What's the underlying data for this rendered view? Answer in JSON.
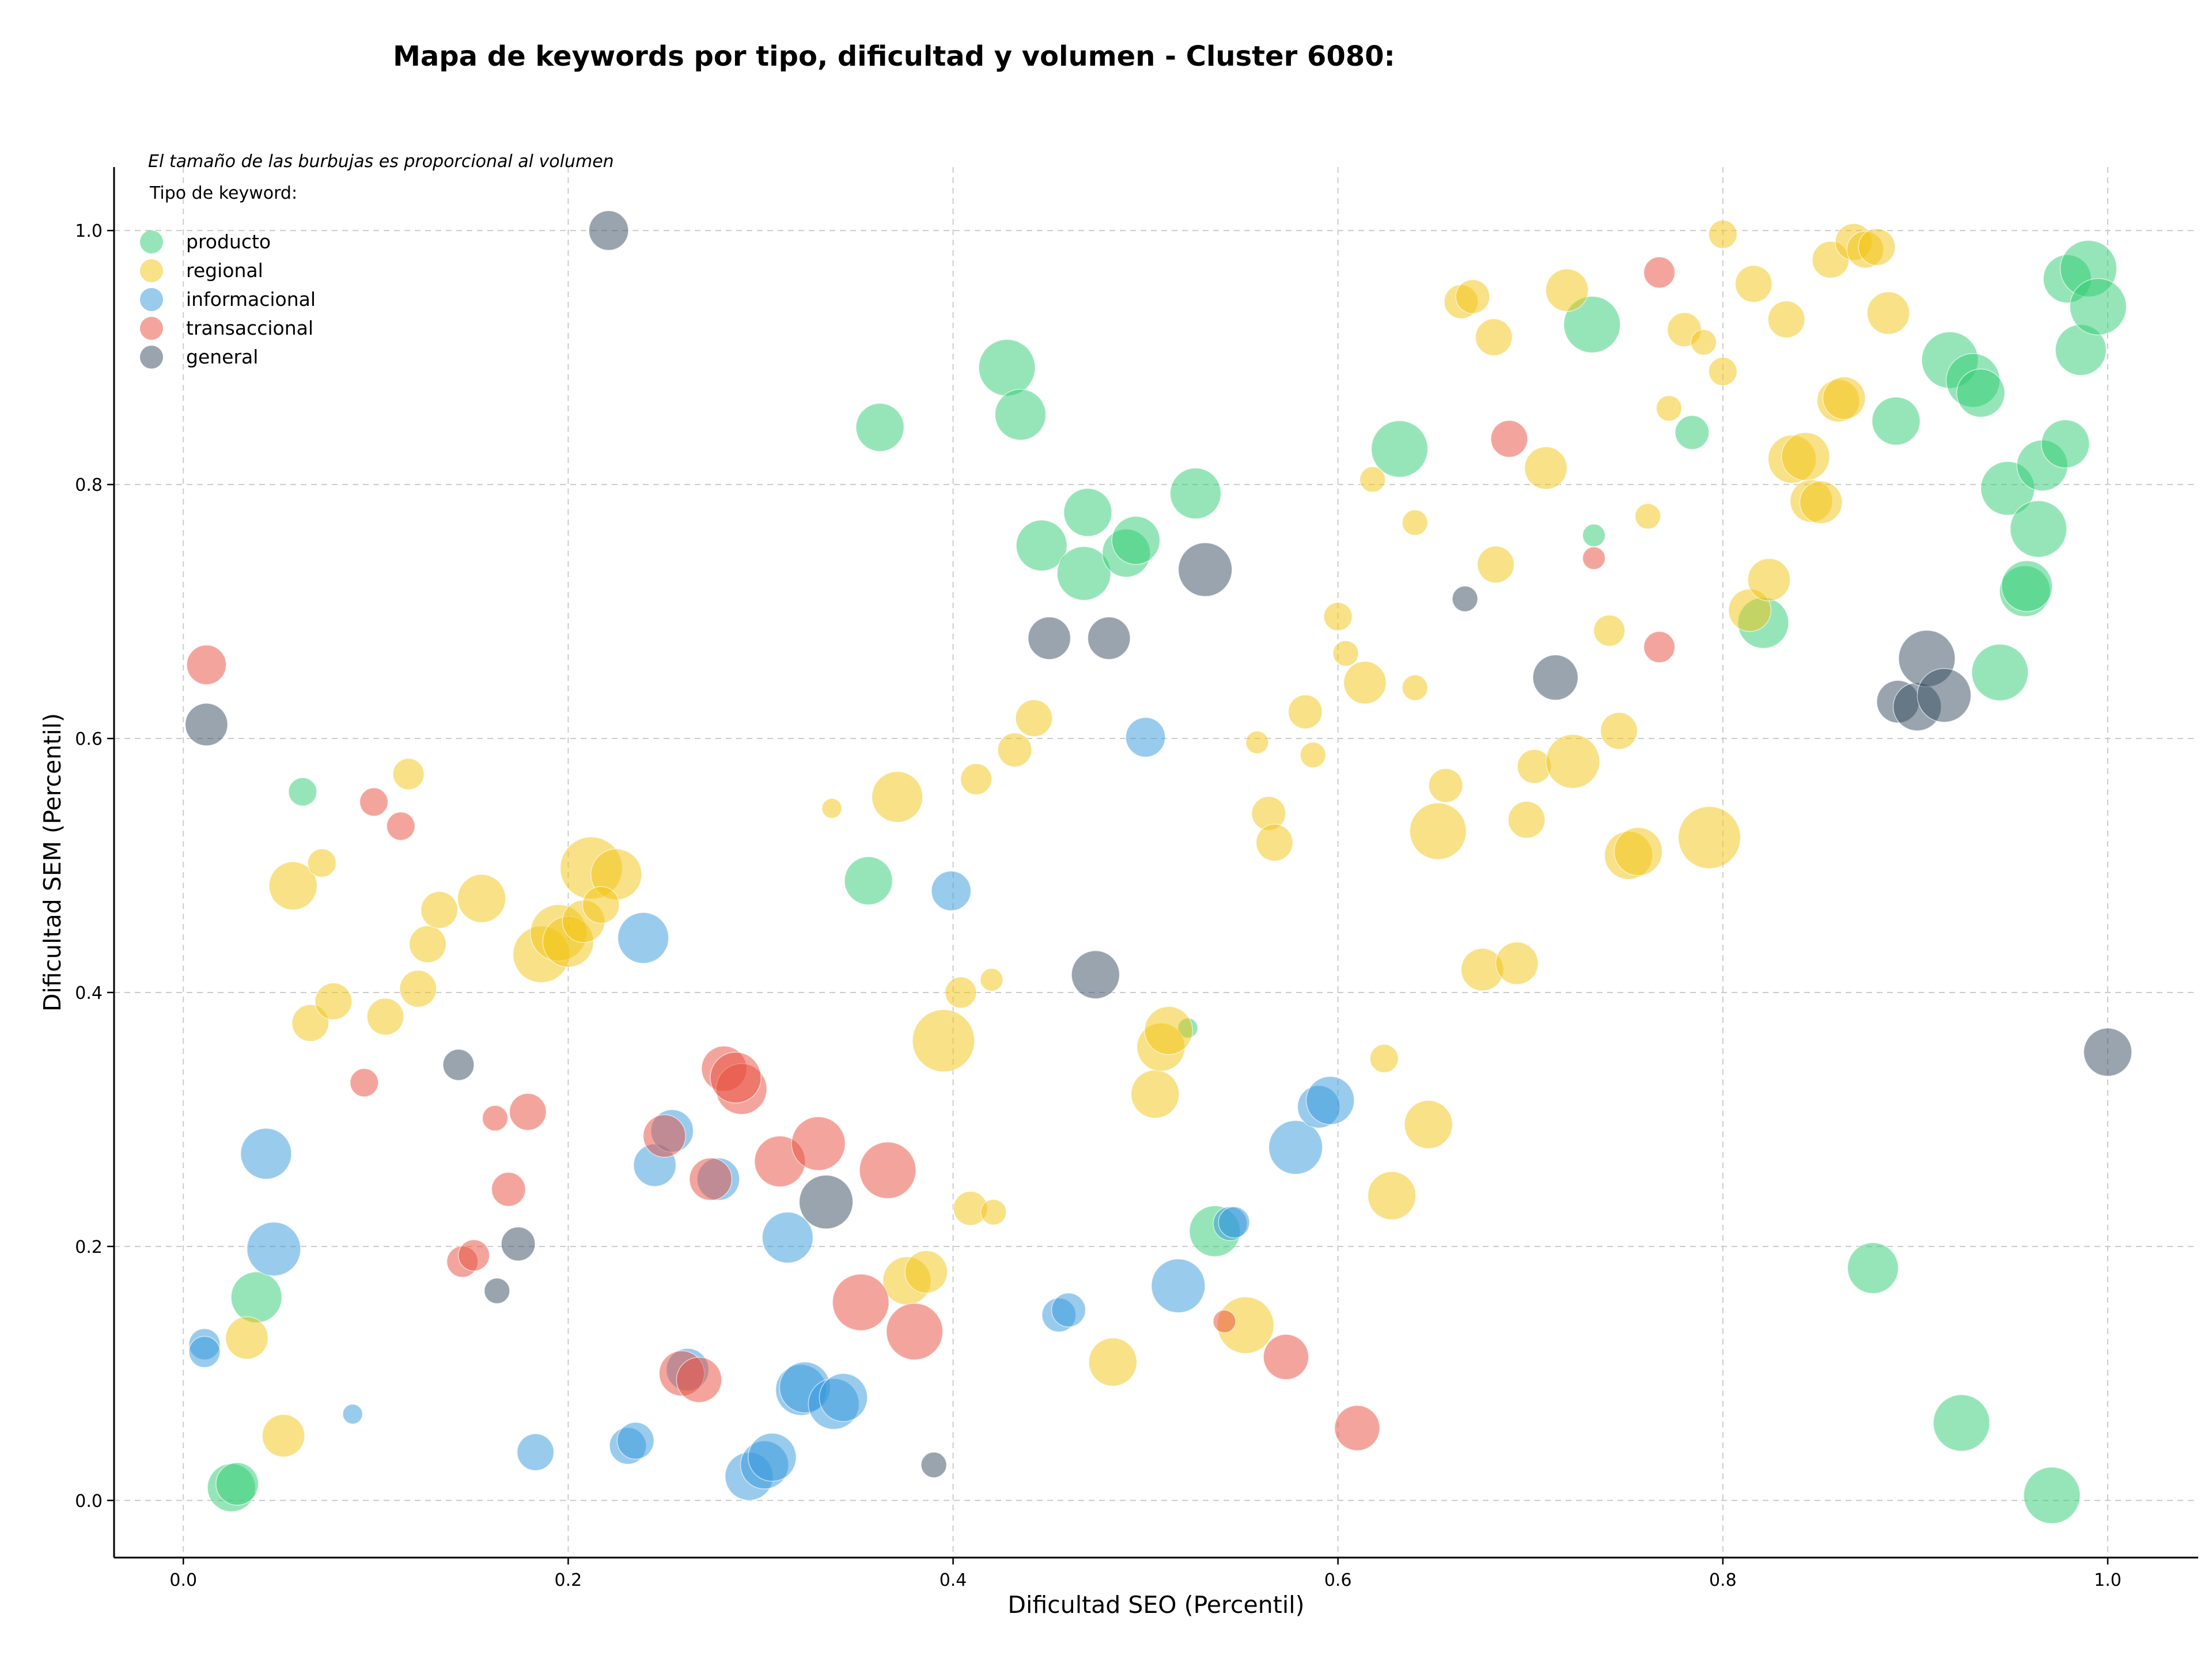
{
  "chart_data": {
    "type": "scatter",
    "title": "Mapa de keywords por tipo, dificultad y volumen - Cluster 6080:",
    "xlabel": "Dificultad SEO (Percentil)",
    "ylabel": "Dificultad SEM (Percentil)",
    "xlim": [
      -0.036,
      1.047
    ],
    "ylim": [
      -0.045,
      1.05
    ],
    "x_ticks": [
      "0.0",
      "0.2",
      "0.4",
      "0.6",
      "0.8",
      "1.0"
    ],
    "y_ticks": [
      "0.0",
      "0.2",
      "0.4",
      "0.6",
      "0.8",
      "1.0"
    ],
    "grid": true,
    "legend": {
      "placement": "top-left",
      "note": "El tamaño de las burbujas es proporcional al volumen",
      "title": "Tipo de keyword:",
      "entries": [
        "producto",
        "regional",
        "informacional",
        "transaccional",
        "general"
      ]
    },
    "size_encoding": "volumen",
    "series": [
      {
        "name": "producto",
        "color": "#2ecc71",
        "points": [
          [
            0.062,
            0.558,
            10
          ],
          [
            0.025,
            0.01,
            17
          ],
          [
            0.028,
            0.013,
            15
          ],
          [
            0.038,
            0.16,
            18
          ],
          [
            0.362,
            0.845,
            17
          ],
          [
            0.356,
            0.488,
            17
          ],
          [
            0.428,
            0.892,
            20
          ],
          [
            0.435,
            0.855,
            18
          ],
          [
            0.446,
            0.752,
            18
          ],
          [
            0.468,
            0.73,
            19
          ],
          [
            0.47,
            0.778,
            17
          ],
          [
            0.49,
            0.746,
            17
          ],
          [
            0.495,
            0.756,
            17
          ],
          [
            0.526,
            0.793,
            18
          ],
          [
            0.536,
            0.212,
            18
          ],
          [
            0.522,
            0.372,
            7
          ],
          [
            0.632,
            0.828,
            20
          ],
          [
            0.732,
            0.926,
            20
          ],
          [
            0.733,
            0.76,
            8
          ],
          [
            0.784,
            0.841,
            12
          ],
          [
            0.821,
            0.691,
            18
          ],
          [
            0.89,
            0.85,
            17
          ],
          [
            0.878,
            0.183,
            18
          ],
          [
            0.924,
            0.061,
            20
          ],
          [
            0.918,
            0.898,
            20
          ],
          [
            0.93,
            0.882,
            19
          ],
          [
            0.934,
            0.872,
            17
          ],
          [
            0.944,
            0.652,
            20
          ],
          [
            0.948,
            0.797,
            19
          ],
          [
            0.957,
            0.716,
            18
          ],
          [
            0.958,
            0.72,
            18
          ],
          [
            0.964,
            0.765,
            20
          ],
          [
            0.966,
            0.815,
            18
          ],
          [
            0.978,
            0.832,
            17
          ],
          [
            0.979,
            0.962,
            17
          ],
          [
            0.986,
            0.906,
            18
          ],
          [
            0.99,
            0.97,
            20
          ],
          [
            0.995,
            0.94,
            20
          ],
          [
            0.971,
            0.004,
            20
          ]
        ]
      },
      {
        "name": "regional",
        "color": "#f1c40f",
        "points": [
          [
            0.033,
            0.128,
            15
          ],
          [
            0.052,
            0.051,
            15
          ],
          [
            0.057,
            0.484,
            17
          ],
          [
            0.066,
            0.376,
            13
          ],
          [
            0.072,
            0.502,
            10
          ],
          [
            0.078,
            0.393,
            13
          ],
          [
            0.105,
            0.381,
            13
          ],
          [
            0.117,
            0.572,
            11
          ],
          [
            0.122,
            0.403,
            13
          ],
          [
            0.127,
            0.438,
            13
          ],
          [
            0.133,
            0.465,
            13
          ],
          [
            0.155,
            0.474,
            17
          ],
          [
            0.186,
            0.43,
            20
          ],
          [
            0.195,
            0.447,
            20
          ],
          [
            0.2,
            0.44,
            18
          ],
          [
            0.208,
            0.456,
            15
          ],
          [
            0.212,
            0.498,
            22
          ],
          [
            0.225,
            0.493,
            18
          ],
          [
            0.217,
            0.469,
            13
          ],
          [
            0.337,
            0.545,
            7
          ],
          [
            0.371,
            0.554,
            18
          ],
          [
            0.376,
            0.173,
            17
          ],
          [
            0.386,
            0.18,
            15
          ],
          [
            0.395,
            0.362,
            22
          ],
          [
            0.404,
            0.4,
            11
          ],
          [
            0.412,
            0.568,
            11
          ],
          [
            0.409,
            0.23,
            12
          ],
          [
            0.42,
            0.41,
            8
          ],
          [
            0.421,
            0.227,
            9
          ],
          [
            0.432,
            0.591,
            12
          ],
          [
            0.442,
            0.616,
            13
          ],
          [
            0.483,
            0.109,
            17
          ],
          [
            0.505,
            0.32,
            17
          ],
          [
            0.508,
            0.357,
            17
          ],
          [
            0.512,
            0.37,
            17
          ],
          [
            0.552,
            0.138,
            20
          ],
          [
            0.558,
            0.597,
            8
          ],
          [
            0.564,
            0.541,
            12
          ],
          [
            0.567,
            0.518,
            13
          ],
          [
            0.583,
            0.621,
            12
          ],
          [
            0.587,
            0.587,
            9
          ],
          [
            0.6,
            0.696,
            10
          ],
          [
            0.604,
            0.667,
            9
          ],
          [
            0.614,
            0.644,
            15
          ],
          [
            0.618,
            0.804,
            9
          ],
          [
            0.624,
            0.348,
            10
          ],
          [
            0.628,
            0.24,
            17
          ],
          [
            0.64,
            0.77,
            9
          ],
          [
            0.64,
            0.64,
            9
          ],
          [
            0.647,
            0.296,
            17
          ],
          [
            0.652,
            0.527,
            20
          ],
          [
            0.656,
            0.563,
            12
          ],
          [
            0.664,
            0.944,
            12
          ],
          [
            0.67,
            0.948,
            12
          ],
          [
            0.681,
            0.916,
            13
          ],
          [
            0.682,
            0.737,
            13
          ],
          [
            0.675,
            0.418,
            15
          ],
          [
            0.693,
            0.423,
            15
          ],
          [
            0.698,
            0.536,
            13
          ],
          [
            0.702,
            0.578,
            12
          ],
          [
            0.708,
            0.813,
            15
          ],
          [
            0.719,
            0.953,
            15
          ],
          [
            0.722,
            0.582,
            19
          ],
          [
            0.741,
            0.685,
            11
          ],
          [
            0.746,
            0.606,
            13
          ],
          [
            0.751,
            0.508,
            17
          ],
          [
            0.756,
            0.511,
            17
          ],
          [
            0.761,
            0.775,
            9
          ],
          [
            0.772,
            0.86,
            9
          ],
          [
            0.78,
            0.922,
            12
          ],
          [
            0.79,
            0.912,
            9
          ],
          [
            0.793,
            0.522,
            22
          ],
          [
            0.8,
            0.997,
            10
          ],
          [
            0.8,
            0.889,
            10
          ],
          [
            0.814,
            0.701,
            15
          ],
          [
            0.816,
            0.958,
            13
          ],
          [
            0.824,
            0.725,
            15
          ],
          [
            0.833,
            0.93,
            13
          ],
          [
            0.836,
            0.82,
            17
          ],
          [
            0.843,
            0.822,
            17
          ],
          [
            0.846,
            0.787,
            15
          ],
          [
            0.851,
            0.786,
            15
          ],
          [
            0.856,
            0.977,
            13
          ],
          [
            0.86,
            0.866,
            15
          ],
          [
            0.863,
            0.868,
            15
          ],
          [
            0.868,
            0.991,
            13
          ],
          [
            0.874,
            0.985,
            13
          ],
          [
            0.88,
            0.987,
            13
          ],
          [
            0.886,
            0.935,
            15
          ]
        ]
      },
      {
        "name": "informacional",
        "color": "#3498db",
        "points": [
          [
            0.011,
            0.123,
            11
          ],
          [
            0.011,
            0.117,
            11
          ],
          [
            0.043,
            0.273,
            18
          ],
          [
            0.047,
            0.198,
            19
          ],
          [
            0.088,
            0.068,
            7
          ],
          [
            0.183,
            0.038,
            13
          ],
          [
            0.231,
            0.043,
            13
          ],
          [
            0.235,
            0.047,
            13
          ],
          [
            0.239,
            0.443,
            18
          ],
          [
            0.245,
            0.264,
            15
          ],
          [
            0.254,
            0.291,
            15
          ],
          [
            0.262,
            0.103,
            15
          ],
          [
            0.278,
            0.253,
            15
          ],
          [
            0.294,
            0.019,
            17
          ],
          [
            0.302,
            0.028,
            17
          ],
          [
            0.306,
            0.034,
            17
          ],
          [
            0.314,
            0.207,
            18
          ],
          [
            0.321,
            0.087,
            18
          ],
          [
            0.323,
            0.089,
            18
          ],
          [
            0.338,
            0.076,
            18
          ],
          [
            0.343,
            0.081,
            17
          ],
          [
            0.399,
            0.48,
            14
          ],
          [
            0.455,
            0.146,
            12
          ],
          [
            0.46,
            0.15,
            12
          ],
          [
            0.5,
            0.601,
            14
          ],
          [
            0.517,
            0.169,
            19
          ],
          [
            0.544,
            0.218,
            12
          ],
          [
            0.546,
            0.219,
            11
          ],
          [
            0.578,
            0.278,
            19
          ],
          [
            0.59,
            0.31,
            15
          ],
          [
            0.596,
            0.315,
            17
          ]
        ]
      },
      {
        "name": "transaccional",
        "color": "#e74c3c",
        "points": [
          [
            0.012,
            0.658,
            14
          ],
          [
            0.094,
            0.329,
            10
          ],
          [
            0.099,
            0.55,
            10
          ],
          [
            0.113,
            0.531,
            10
          ],
          [
            0.145,
            0.188,
            11
          ],
          [
            0.151,
            0.193,
            11
          ],
          [
            0.162,
            0.301,
            9
          ],
          [
            0.169,
            0.245,
            12
          ],
          [
            0.179,
            0.306,
            13
          ],
          [
            0.25,
            0.287,
            15
          ],
          [
            0.259,
            0.1,
            16
          ],
          [
            0.268,
            0.095,
            16
          ],
          [
            0.274,
            0.253,
            15
          ],
          [
            0.281,
            0.34,
            16
          ],
          [
            0.29,
            0.324,
            18
          ],
          [
            0.287,
            0.333,
            18
          ],
          [
            0.31,
            0.267,
            18
          ],
          [
            0.33,
            0.281,
            19
          ],
          [
            0.352,
            0.156,
            20
          ],
          [
            0.366,
            0.26,
            20
          ],
          [
            0.38,
            0.133,
            20
          ],
          [
            0.541,
            0.141,
            8
          ],
          [
            0.573,
            0.113,
            16
          ],
          [
            0.61,
            0.057,
            16
          ],
          [
            0.689,
            0.836,
            13
          ],
          [
            0.733,
            0.742,
            8
          ],
          [
            0.767,
            0.672,
            11
          ],
          [
            0.767,
            0.967,
            11
          ]
        ]
      },
      {
        "name": "general",
        "color": "#34495e",
        "points": [
          [
            0.221,
            1.0,
            14
          ],
          [
            0.012,
            0.611,
            15
          ],
          [
            0.143,
            0.343,
            11
          ],
          [
            0.174,
            0.202,
            12
          ],
          [
            0.163,
            0.165,
            9
          ],
          [
            0.334,
            0.235,
            19
          ],
          [
            0.39,
            0.028,
            9
          ],
          [
            0.45,
            0.679,
            15
          ],
          [
            0.481,
            0.679,
            15
          ],
          [
            0.474,
            0.414,
            17
          ],
          [
            0.531,
            0.733,
            19
          ],
          [
            0.666,
            0.71,
            9
          ],
          [
            0.713,
            0.648,
            16
          ],
          [
            0.891,
            0.629,
            15
          ],
          [
            0.901,
            0.625,
            17
          ],
          [
            0.906,
            0.663,
            20
          ],
          [
            0.915,
            0.634,
            19
          ],
          [
            1.0,
            0.353,
            17
          ]
        ]
      }
    ]
  }
}
